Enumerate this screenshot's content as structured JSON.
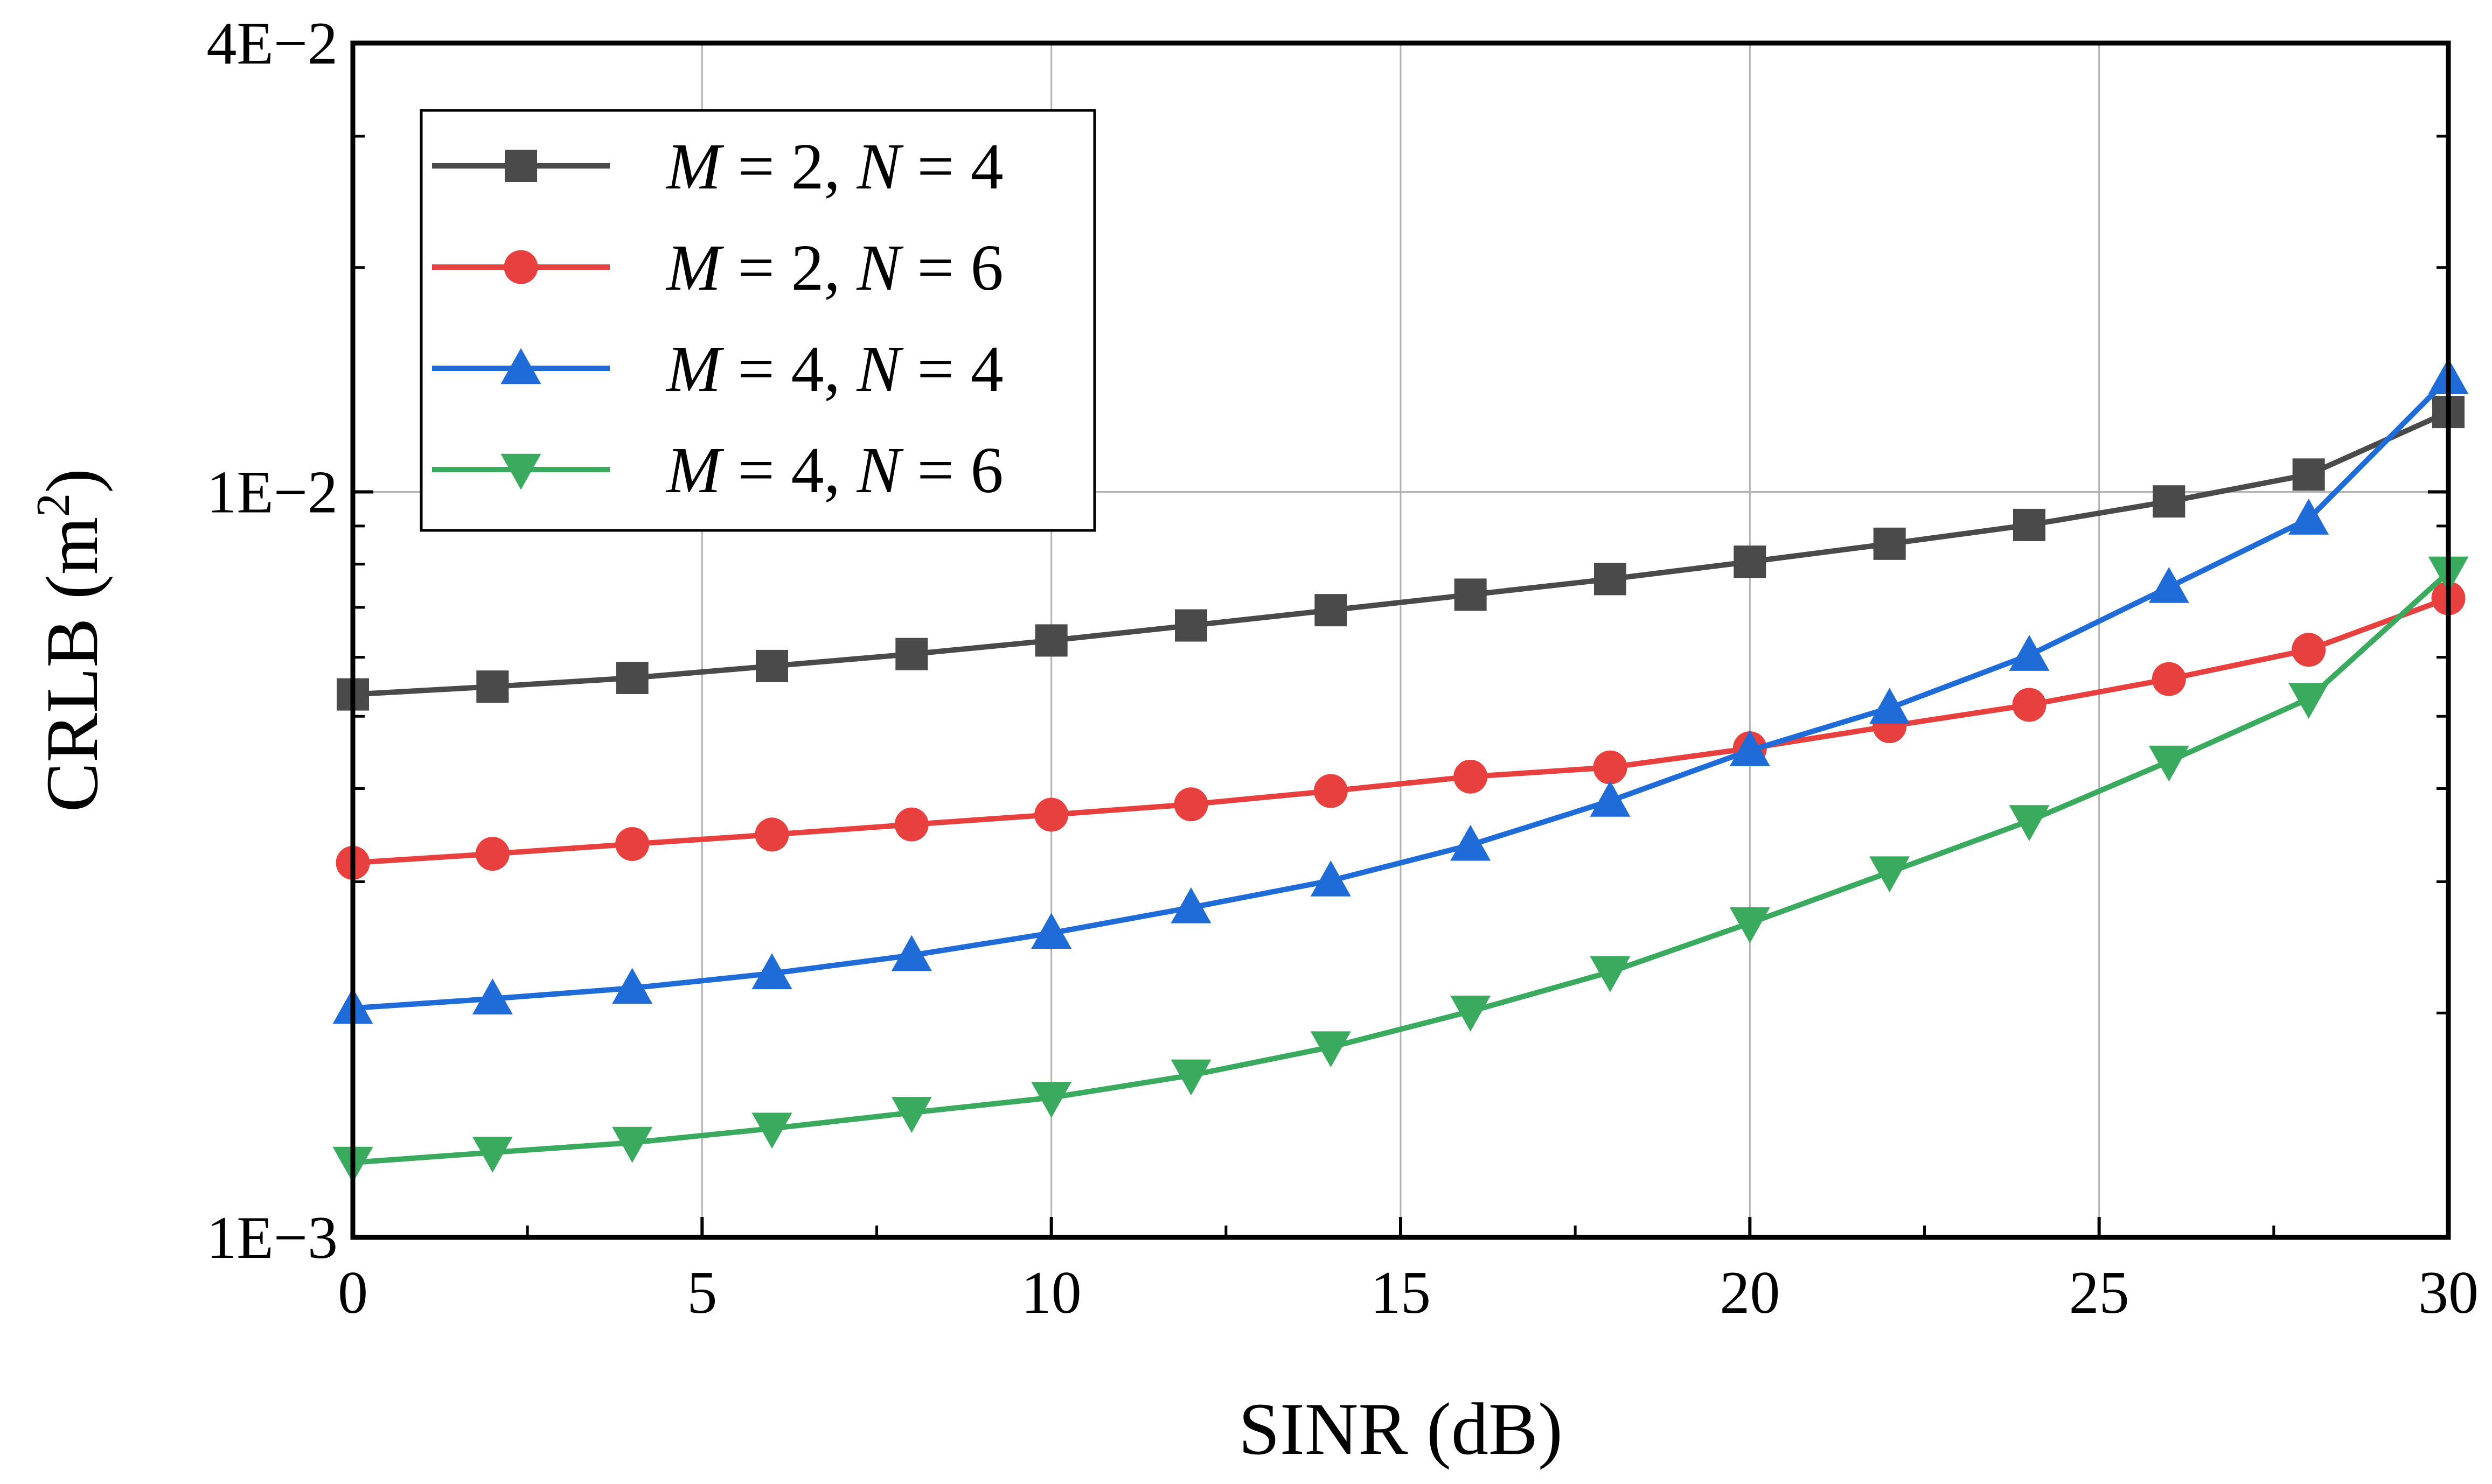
{
  "chart_data": {
    "type": "line",
    "title": "",
    "xlabel": "SINR (dB)",
    "ylabel_main": "CRLB (m",
    "ylabel_sup": "2",
    "ylabel_close": ")",
    "ylabel": "CRLB (m2)",
    "xlim": [
      0,
      30
    ],
    "ylim": [
      0.001,
      0.04
    ],
    "yscale": "log",
    "grid": true,
    "x_ticks": [
      0,
      5,
      10,
      15,
      20,
      25,
      30
    ],
    "x_tick_labels": [
      "0",
      "5",
      "10",
      "15",
      "20",
      "25",
      "30"
    ],
    "y_ticks": [
      0.001,
      0.01,
      0.04
    ],
    "y_tick_labels": [
      "1E−3",
      "1E−2",
      "4E−2"
    ],
    "legend_position": "top-left",
    "x": [
      0,
      2,
      4,
      6,
      8,
      10,
      12,
      14,
      16,
      18,
      20,
      22,
      24,
      26,
      28,
      30
    ],
    "series": [
      {
        "name": "M = 2, N = 4",
        "m_var": "M",
        "m_value": "= 2,",
        "n_var": "N",
        "n_value": "= 4",
        "color": "#4a4a4a",
        "marker": "square",
        "values": [
          0.00535,
          0.00548,
          0.00563,
          0.00584,
          0.00606,
          0.00632,
          0.00662,
          0.00694,
          0.00728,
          0.00764,
          0.00806,
          0.00852,
          0.00903,
          0.00971,
          0.01055,
          0.0128
        ]
      },
      {
        "name": "M = 2, N = 6",
        "m_var": "M",
        "m_value": "= 2,",
        "n_var": "N",
        "n_value": "= 6",
        "color": "#e8403f",
        "marker": "circle",
        "values": [
          0.00318,
          0.00327,
          0.00337,
          0.00347,
          0.00358,
          0.00369,
          0.00381,
          0.00397,
          0.00415,
          0.00427,
          0.00453,
          0.00485,
          0.00518,
          0.00561,
          0.00614,
          0.0072
        ]
      },
      {
        "name": "M = 4, N = 4",
        "m_var": "M",
        "m_value": "= 4,",
        "n_var": "N",
        "n_value": "= 4",
        "color": "#1f6cd8",
        "marker": "triangle-up",
        "values": [
          0.00203,
          0.00209,
          0.00216,
          0.00226,
          0.00239,
          0.00256,
          0.00277,
          0.00301,
          0.00336,
          0.00385,
          0.0045,
          0.00513,
          0.00604,
          0.00745,
          0.0092,
          0.0142
        ]
      },
      {
        "name": "M = 4, N = 6",
        "m_var": "M",
        "m_value": "= 4,",
        "n_var": "N",
        "n_value": "= 6",
        "color": "#3aaa5e",
        "marker": "triangle-down",
        "values": [
          0.00126,
          0.0013,
          0.00134,
          0.0014,
          0.00147,
          0.00154,
          0.00165,
          0.0018,
          0.00201,
          0.00227,
          0.00264,
          0.00309,
          0.00362,
          0.00435,
          0.00528,
          0.0078
        ]
      }
    ]
  }
}
